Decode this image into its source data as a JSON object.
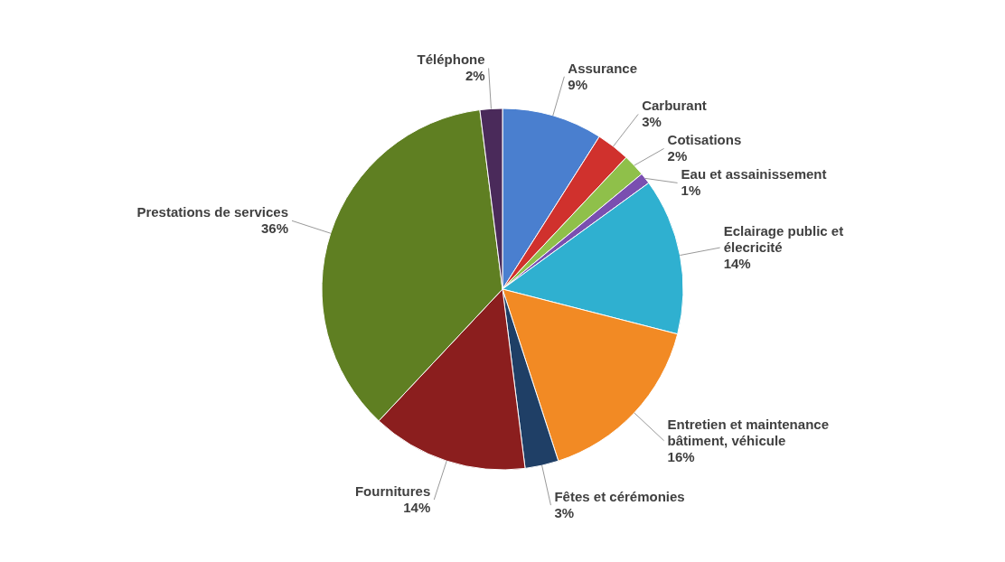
{
  "chart_data": {
    "type": "pie",
    "categories": [
      "Assurance",
      "Carburant",
      "Cotisations",
      "Eau et assainissement",
      "Eclairage public  et élecricité",
      "Entretien et maintenance bâtiment, véhicule",
      "Fêtes et cérémonies",
      "Fournitures",
      "Prestations de services",
      "Téléphone"
    ],
    "values": [
      9,
      3,
      2,
      1,
      14,
      16,
      3,
      14,
      36,
      2
    ],
    "value_labels": [
      "9%",
      "3%",
      "2%",
      "1%",
      "14%",
      "16%",
      "3%",
      "14%",
      "36%",
      "2%"
    ],
    "colors": [
      "#4a7fcf",
      "#d0312d",
      "#8fc04a",
      "#7a4fb0",
      "#2fb0d0",
      "#f28a24",
      "#1f3f66",
      "#8b1e1e",
      "#5f7f22",
      "#4a2a5a"
    ],
    "legend": false
  }
}
